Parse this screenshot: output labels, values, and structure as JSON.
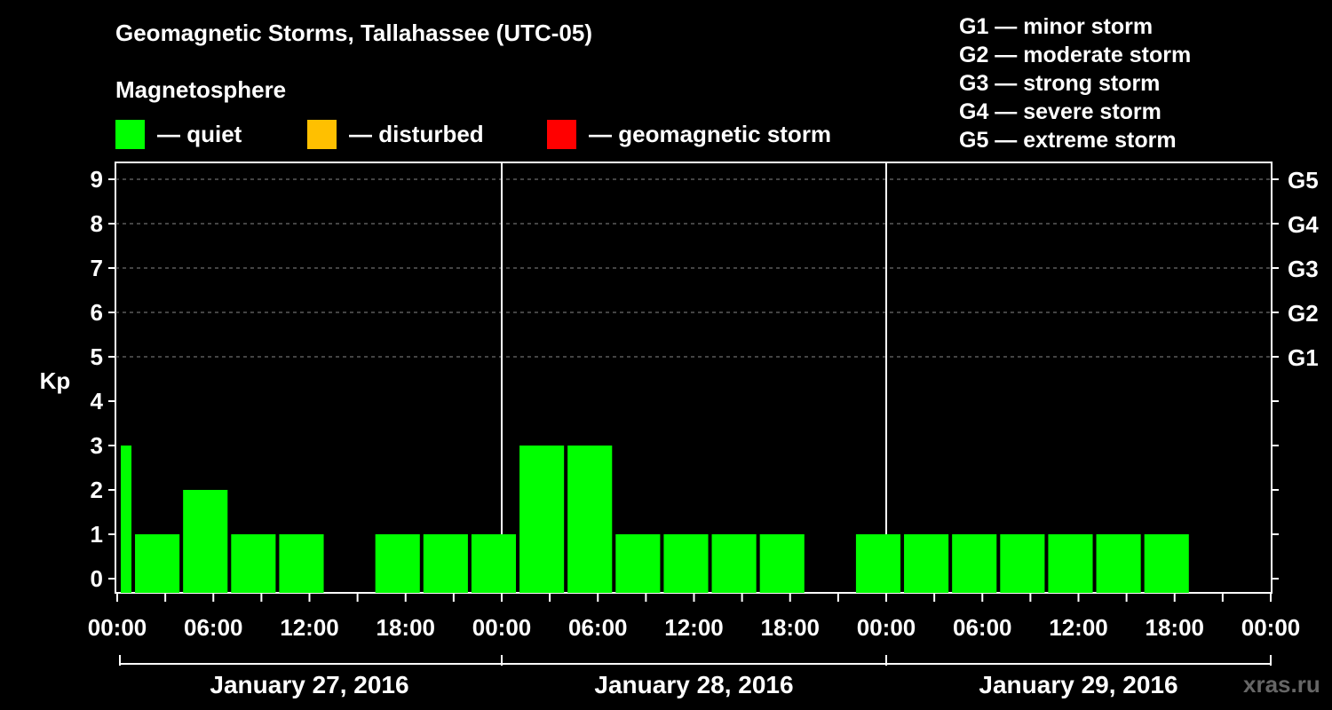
{
  "header": {
    "title": "Geomagnetic Storms, Tallahassee (UTC-05)",
    "subtitle": "Magnetosphere"
  },
  "legend": [
    {
      "label": "— quiet",
      "color": "#00ff00"
    },
    {
      "label": "— disturbed",
      "color": "#ffc000"
    },
    {
      "label": "— geomagnetic storm",
      "color": "#ff0000"
    }
  ],
  "storm_levels": [
    "G1 — minor storm",
    "G2 — moderate storm",
    "G3 — strong storm",
    "G4 — severe storm",
    "G5 — extreme storm"
  ],
  "watermark": "xras.ru",
  "chart_data": {
    "type": "bar",
    "title": "Geomagnetic Storms, Tallahassee (UTC-05)",
    "ylabel": "Kp",
    "ylim": [
      0,
      9
    ],
    "yticks": [
      "0",
      "1",
      "2",
      "3",
      "4",
      "5",
      "6",
      "7",
      "8",
      "9"
    ],
    "right_axis": [
      {
        "kp": 5,
        "label": "G1"
      },
      {
        "kp": 6,
        "label": "G2"
      },
      {
        "kp": 7,
        "label": "G3"
      },
      {
        "kp": 8,
        "label": "G4"
      },
      {
        "kp": 9,
        "label": "G5"
      }
    ],
    "x_range_hours": [
      0,
      72
    ],
    "xtick_labels": [
      "00:00",
      "06:00",
      "12:00",
      "18:00",
      "00:00",
      "06:00",
      "12:00",
      "18:00",
      "00:00",
      "06:00",
      "12:00",
      "18:00",
      "00:00"
    ],
    "days": [
      "January 27, 2016",
      "January 28, 2016",
      "January 29, 2016"
    ],
    "grid": "dashed horizontal at Kp 5-9",
    "bars": [
      {
        "start": 0,
        "end": 1,
        "kp": 3,
        "status": "quiet"
      },
      {
        "start": 1,
        "end": 4,
        "kp": 1,
        "status": "quiet"
      },
      {
        "start": 4,
        "end": 7,
        "kp": 2,
        "status": "quiet"
      },
      {
        "start": 7,
        "end": 10,
        "kp": 1,
        "status": "quiet"
      },
      {
        "start": 10,
        "end": 13,
        "kp": 1,
        "status": "quiet"
      },
      {
        "start": 13,
        "end": 16,
        "kp": 0,
        "status": "quiet"
      },
      {
        "start": 16,
        "end": 19,
        "kp": 1,
        "status": "quiet"
      },
      {
        "start": 19,
        "end": 22,
        "kp": 1,
        "status": "quiet"
      },
      {
        "start": 22,
        "end": 25,
        "kp": 1,
        "status": "quiet"
      },
      {
        "start": 25,
        "end": 28,
        "kp": 3,
        "status": "quiet"
      },
      {
        "start": 28,
        "end": 31,
        "kp": 3,
        "status": "quiet"
      },
      {
        "start": 31,
        "end": 34,
        "kp": 1,
        "status": "quiet"
      },
      {
        "start": 34,
        "end": 37,
        "kp": 1,
        "status": "quiet"
      },
      {
        "start": 37,
        "end": 40,
        "kp": 1,
        "status": "quiet"
      },
      {
        "start": 40,
        "end": 43,
        "kp": 1,
        "status": "quiet"
      },
      {
        "start": 43,
        "end": 46,
        "kp": 0,
        "status": "quiet"
      },
      {
        "start": 46,
        "end": 49,
        "kp": 1,
        "status": "quiet"
      },
      {
        "start": 49,
        "end": 52,
        "kp": 1,
        "status": "quiet"
      },
      {
        "start": 52,
        "end": 55,
        "kp": 1,
        "status": "quiet"
      },
      {
        "start": 55,
        "end": 58,
        "kp": 1,
        "status": "quiet"
      },
      {
        "start": 58,
        "end": 61,
        "kp": 1,
        "status": "quiet"
      },
      {
        "start": 61,
        "end": 64,
        "kp": 1,
        "status": "quiet"
      },
      {
        "start": 64,
        "end": 67,
        "kp": 1,
        "status": "quiet"
      }
    ]
  }
}
